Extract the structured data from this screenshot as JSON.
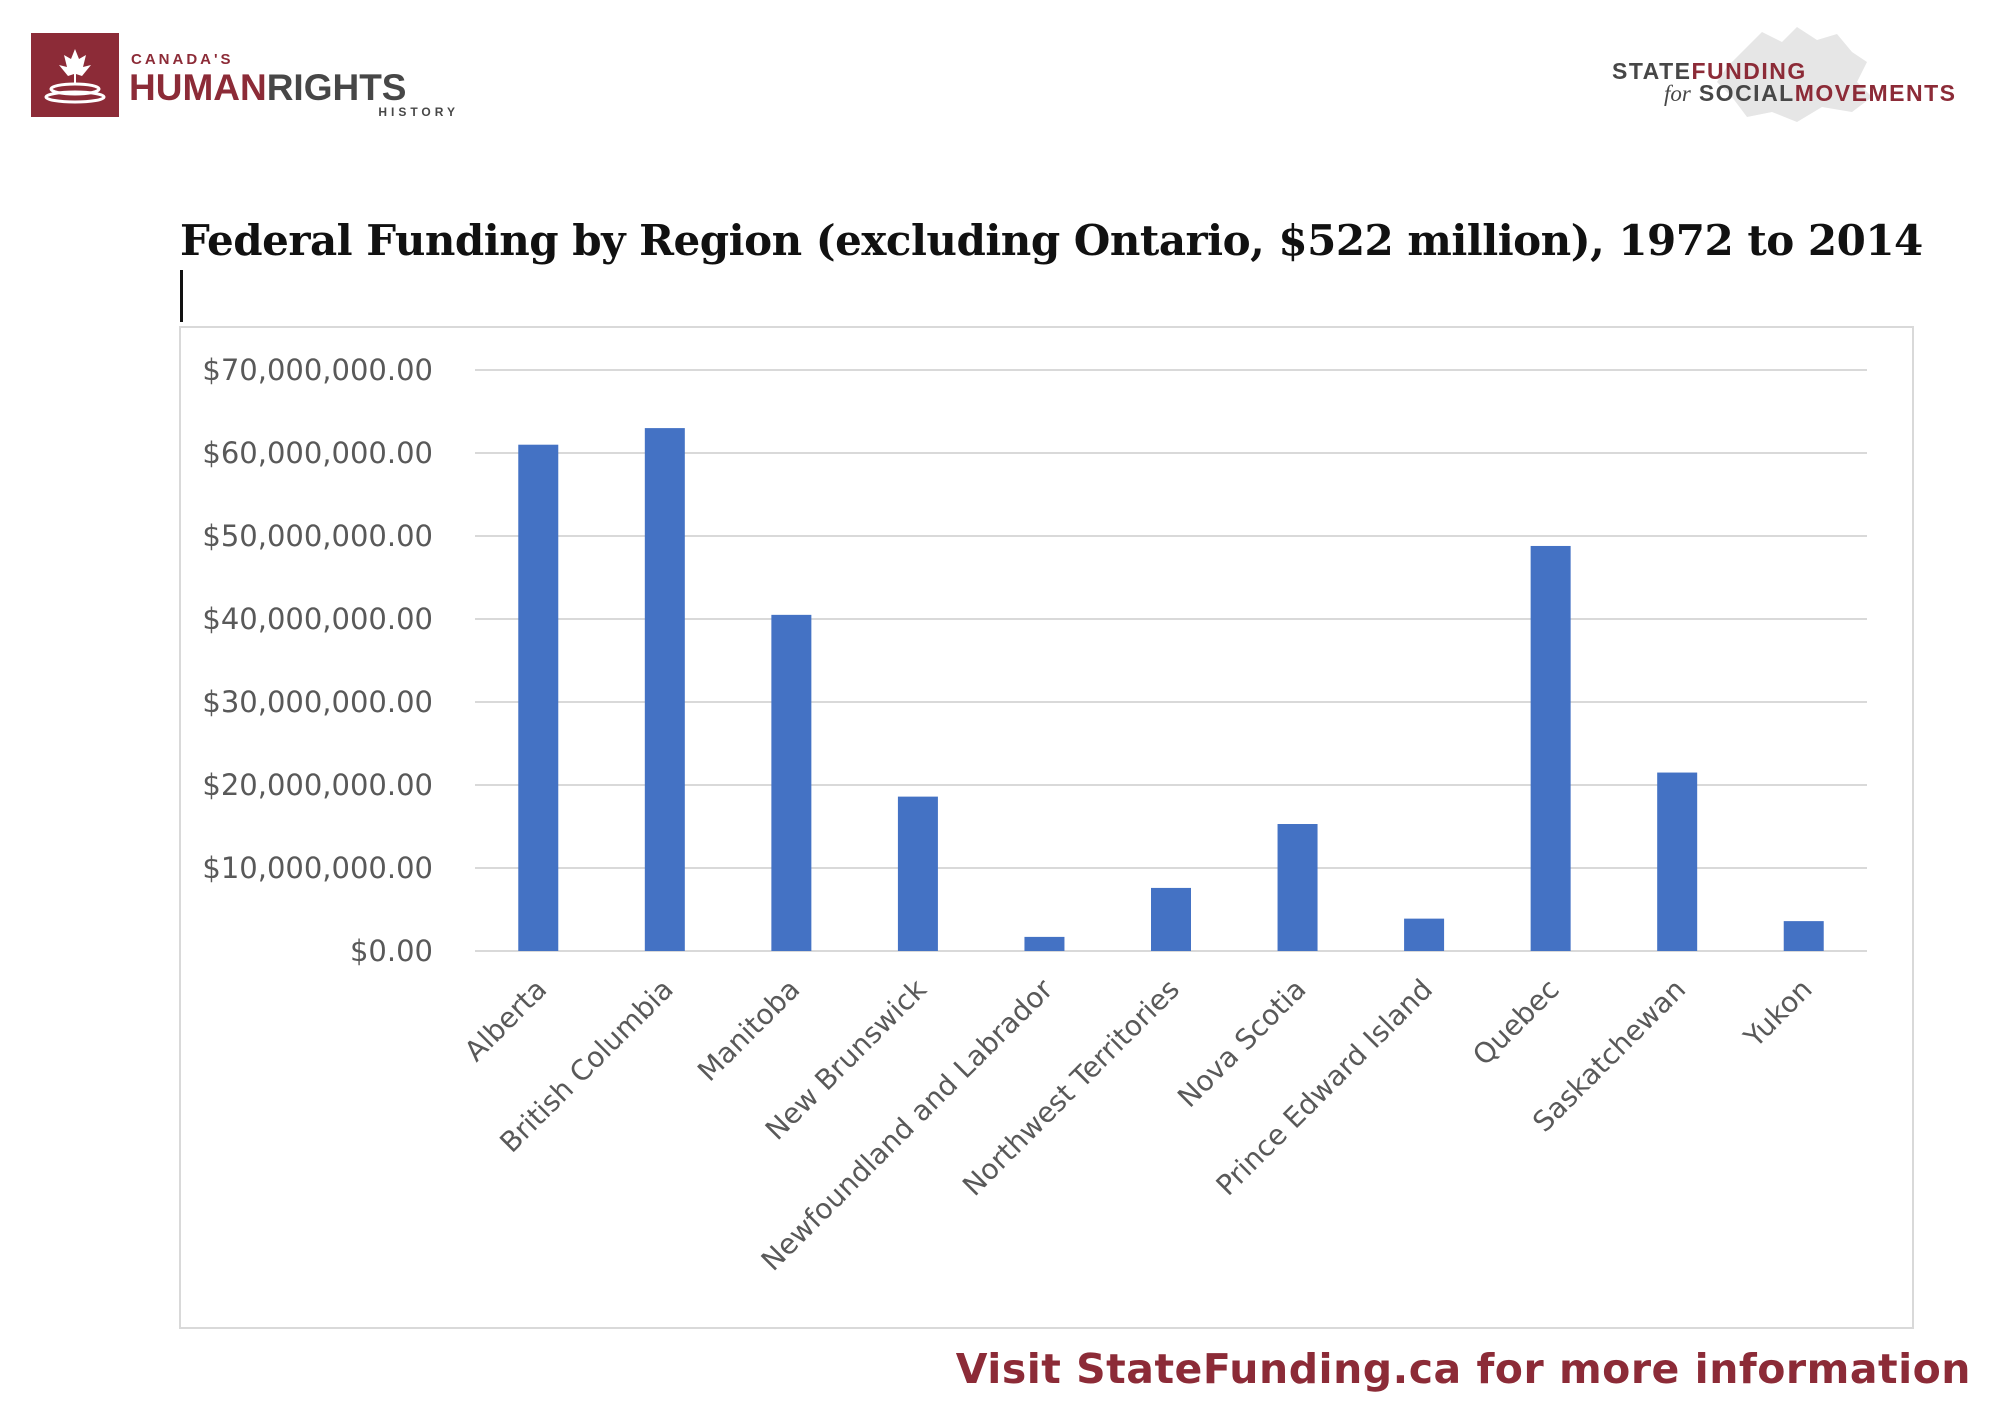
{
  "branding": {
    "left_logo": {
      "line1": "CANADA'S",
      "line2_a": "HUMAN",
      "line2_b": "RIGHTS",
      "line3": "HISTORY"
    },
    "right_logo": {
      "line1_a": "STATE",
      "line1_b": "FUNDING",
      "line2_for": "for",
      "line2_a": "SOCIAL",
      "line2_b": "MOVEMENTS"
    },
    "accent_color": "#8c2b37"
  },
  "footer": {
    "text": "Visit StateFunding.ca for more information"
  },
  "chart_data": {
    "type": "bar",
    "title": "Federal Funding by Region (excluding Ontario, $522 million), 1972 to 2014",
    "xlabel": "",
    "ylabel": "",
    "categories": [
      "Alberta",
      "British Columbia",
      "Manitoba",
      "New Brunswick",
      "Newfoundland and Labrador",
      "Northwest Territories",
      "Nova Scotia",
      "Prince Edward Island",
      "Quebec",
      "Saskatchewan",
      "Yukon"
    ],
    "values": [
      61000000,
      63000000,
      40500000,
      18600000,
      1700000,
      7600000,
      15300000,
      3900000,
      48800000,
      21500000,
      3600000
    ],
    "yticks": [
      "$0.00",
      "$10,000,000.00",
      "$20,000,000.00",
      "$30,000,000.00",
      "$40,000,000.00",
      "$50,000,000.00",
      "$60,000,000.00",
      "$70,000,000.00"
    ],
    "ylim": [
      0,
      70000000
    ],
    "grid": true,
    "legend": "none",
    "bar_color": "#4472c4"
  }
}
